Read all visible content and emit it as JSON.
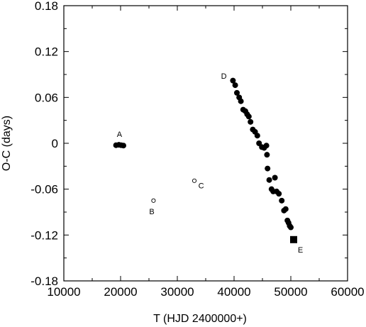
{
  "chart_data": {
    "type": "scatter",
    "title": "",
    "xlabel": "T (HJD 2400000+)",
    "ylabel": "O-C (days)",
    "xlim": [
      10000,
      60000
    ],
    "ylim": [
      -0.18,
      0.18
    ],
    "x_ticks": [
      10000,
      20000,
      30000,
      40000,
      50000,
      60000
    ],
    "x_tick_labels": [
      "10000",
      "20000",
      "30000",
      "40000",
      "50000",
      "60000"
    ],
    "y_ticks": [
      0.18,
      0.12,
      0.06,
      0,
      -0.06,
      -0.12,
      -0.18
    ],
    "y_tick_labels": [
      "0.18",
      "0.12",
      "0.06",
      "0",
      "-0.06",
      "-0.12",
      "-0.18"
    ],
    "grid": false,
    "legend": "none",
    "series": [
      {
        "marker": "filled-circle",
        "color": "#000000",
        "points": [
          {
            "x": 19200,
            "y": -0.0025
          },
          {
            "x": 19700,
            "y": -0.002
          },
          {
            "x": 20100,
            "y": -0.0025
          },
          {
            "x": 20500,
            "y": -0.003
          },
          {
            "x": 39800,
            "y": 0.082
          },
          {
            "x": 40200,
            "y": 0.076
          },
          {
            "x": 40500,
            "y": 0.066
          },
          {
            "x": 40900,
            "y": 0.06
          },
          {
            "x": 41200,
            "y": 0.055
          },
          {
            "x": 41600,
            "y": 0.044
          },
          {
            "x": 42000,
            "y": 0.042
          },
          {
            "x": 42300,
            "y": 0.038
          },
          {
            "x": 42600,
            "y": 0.035
          },
          {
            "x": 42900,
            "y": 0.028
          },
          {
            "x": 43300,
            "y": 0.018
          },
          {
            "x": 43700,
            "y": 0.015
          },
          {
            "x": 44100,
            "y": 0.01
          },
          {
            "x": 44400,
            "y": 0.0
          },
          {
            "x": 44900,
            "y": -0.005
          },
          {
            "x": 45300,
            "y": -0.006
          },
          {
            "x": 45700,
            "y": -0.003
          },
          {
            "x": 45800,
            "y": -0.015
          },
          {
            "x": 45900,
            "y": -0.033
          },
          {
            "x": 46200,
            "y": -0.048
          },
          {
            "x": 46600,
            "y": -0.06
          },
          {
            "x": 46900,
            "y": -0.063
          },
          {
            "x": 47200,
            "y": -0.045
          },
          {
            "x": 47500,
            "y": -0.063
          },
          {
            "x": 47900,
            "y": -0.066
          },
          {
            "x": 48400,
            "y": -0.075
          },
          {
            "x": 48800,
            "y": -0.088
          },
          {
            "x": 49100,
            "y": -0.086
          },
          {
            "x": 49400,
            "y": -0.101
          },
          {
            "x": 49600,
            "y": -0.104
          },
          {
            "x": 49800,
            "y": -0.108
          },
          {
            "x": 50000,
            "y": -0.11
          }
        ]
      },
      {
        "marker": "open-circle",
        "color": "#000000",
        "points": [
          {
            "x": 25800,
            "y": -0.075
          },
          {
            "x": 33000,
            "y": -0.049
          }
        ]
      },
      {
        "marker": "filled-square",
        "color": "#000000",
        "points": [
          {
            "x": 50500,
            "y": -0.126
          }
        ]
      }
    ],
    "annotations": [
      {
        "text": "A",
        "x": 19800,
        "y": 0.012
      },
      {
        "text": "B",
        "x": 25500,
        "y": -0.089
      },
      {
        "text": "C",
        "x": 34200,
        "y": -0.055
      },
      {
        "text": "D",
        "x": 38200,
        "y": 0.088
      },
      {
        "text": "E",
        "x": 51700,
        "y": -0.139
      }
    ]
  }
}
